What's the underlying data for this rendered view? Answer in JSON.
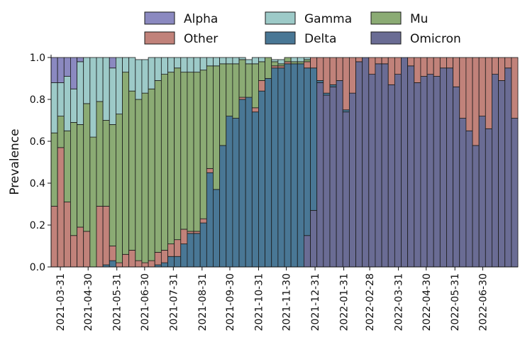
{
  "chart_data": {
    "type": "bar",
    "stacked": true,
    "normalized": true,
    "ylabel": "Prevalence",
    "xlabel": "",
    "ylim": [
      0,
      1.0
    ],
    "yticks": [
      0.0,
      0.2,
      0.4,
      0.6,
      0.8,
      1.0
    ],
    "xticks": [
      "2021-03-31",
      "2021-04-30",
      "2021-05-31",
      "2021-06-30",
      "2021-07-31",
      "2021-08-31",
      "2021-09-30",
      "2021-10-31",
      "2021-11-30",
      "2021-12-31",
      "2022-01-31",
      "2022-02-28",
      "2022-03-31",
      "2022-04-30",
      "2022-05-31",
      "2022-06-30"
    ],
    "bin": "week",
    "first_week_start": "2021-03-21",
    "legend": {
      "position": "top",
      "columns": 3,
      "order": [
        "Alpha",
        "Gamma",
        "Mu",
        "Other",
        "Delta",
        "Omicron"
      ]
    },
    "colors": {
      "Alpha": "#8b89c0",
      "Gamma": "#9dcac8",
      "Mu": "#8bab74",
      "Other": "#c1827a",
      "Delta": "#497795",
      "Omicron": "#6a6c94",
      "edge": "#1a1a1a"
    },
    "stack_order": [
      "Omicron",
      "Delta",
      "Other",
      "Mu",
      "Gamma",
      "Alpha"
    ],
    "series": [
      {
        "name": "Omicron",
        "values": [
          0,
          0,
          0,
          0,
          0,
          0,
          0,
          0,
          0,
          0,
          0,
          0,
          0,
          0,
          0,
          0,
          0,
          0,
          0,
          0,
          0,
          0,
          0,
          0,
          0,
          0,
          0,
          0,
          0,
          0,
          0,
          0,
          0,
          0,
          0,
          0,
          0,
          0,
          0,
          0.15,
          0.27,
          0.88,
          0.82,
          0.86,
          0.89,
          0.74,
          0.83,
          0.98,
          1.0,
          0.92,
          0.97,
          0.97,
          0.87,
          0.92,
          1.0,
          0.96,
          0.88,
          0.91,
          0.92,
          0.91,
          0.95,
          0.95,
          0.86,
          0.71,
          0.65,
          0.58,
          0.72,
          0.66,
          0.92,
          0.89,
          0.95,
          0.71
        ]
      },
      {
        "name": "Delta",
        "values": [
          0,
          0,
          0,
          0,
          0,
          0,
          0,
          0,
          0.01,
          0.03,
          0,
          0,
          0,
          0,
          0,
          0,
          0.01,
          0.02,
          0.05,
          0.05,
          0.11,
          0.16,
          0.16,
          0.21,
          0.45,
          0.37,
          0.58,
          0.72,
          0.71,
          0.8,
          0.81,
          0.74,
          0.84,
          0.9,
          0.95,
          0.95,
          0.97,
          0.97,
          0.97,
          0.8,
          0.68,
          0.01,
          0.01,
          0.01,
          0,
          0.01,
          0,
          0,
          0,
          0,
          0,
          0,
          0,
          0,
          0,
          0,
          0,
          0,
          0,
          0,
          0,
          0,
          0,
          0,
          0,
          0,
          0,
          0,
          0,
          0,
          0,
          0
        ]
      },
      {
        "name": "Other",
        "values": [
          0.29,
          0.57,
          0.31,
          0.15,
          0.19,
          0.17,
          0,
          0.29,
          0.28,
          0.07,
          0.02,
          0.06,
          0.08,
          0.03,
          0.02,
          0.03,
          0.06,
          0.06,
          0.06,
          0.08,
          0.07,
          0.01,
          0.01,
          0.02,
          0.02,
          0,
          0,
          0,
          0,
          0.01,
          0,
          0.02,
          0.05,
          0,
          0.01,
          0.01,
          0.01,
          0,
          0,
          0.03,
          0.05,
          0.11,
          0.17,
          0.13,
          0.11,
          0.26,
          0.17,
          0.02,
          0,
          0.08,
          0.03,
          0.03,
          0.13,
          0.08,
          0,
          0.04,
          0.12,
          0.09,
          0.08,
          0.09,
          0.05,
          0.05,
          0.14,
          0.29,
          0.35,
          0.42,
          0.28,
          0.34,
          0.08,
          0.11,
          0.05,
          0.29
        ]
      },
      {
        "name": "Mu",
        "values": [
          0.35,
          0.15,
          0.34,
          0.54,
          0.49,
          0.61,
          0.62,
          0.5,
          0.41,
          0.58,
          0.71,
          0.87,
          0.76,
          0.77,
          0.81,
          0.82,
          0.82,
          0.84,
          0.82,
          0.82,
          0.75,
          0.76,
          0.76,
          0.71,
          0.49,
          0.59,
          0.39,
          0.25,
          0.26,
          0.18,
          0.16,
          0.21,
          0.09,
          0.1,
          0.02,
          0.01,
          0.02,
          0.01,
          0.01,
          0.01,
          0,
          0,
          0,
          0,
          0,
          0,
          0,
          0,
          0,
          0,
          0,
          0,
          0,
          0,
          0,
          0,
          0,
          0,
          0,
          0,
          0,
          0,
          0,
          0,
          0,
          0,
          0,
          0,
          0,
          0,
          0,
          0
        ]
      },
      {
        "name": "Gamma",
        "values": [
          0.24,
          0.16,
          0.26,
          0.16,
          0.3,
          0.22,
          0.38,
          0.21,
          0.3,
          0.27,
          0.27,
          0.07,
          0.16,
          0.19,
          0.16,
          0.15,
          0.11,
          0.08,
          0.07,
          0.05,
          0.07,
          0.07,
          0.07,
          0.06,
          0.04,
          0.04,
          0.03,
          0.03,
          0.03,
          0.01,
          0.02,
          0.03,
          0.02,
          0,
          0.01,
          0.02,
          0,
          0.02,
          0.02,
          0.01,
          0,
          0,
          0,
          0,
          0,
          0,
          0,
          0,
          0,
          0,
          0,
          0,
          0,
          0,
          0,
          0,
          0,
          0,
          0,
          0,
          0,
          0,
          0,
          0,
          0,
          0,
          0,
          0,
          0,
          0,
          0,
          0
        ]
      },
      {
        "name": "Alpha",
        "values": [
          0.12,
          0.12,
          0.09,
          0.15,
          0.02,
          0,
          0,
          0,
          0,
          0.05,
          0,
          0,
          0,
          0,
          0,
          0,
          0,
          0,
          0,
          0,
          0,
          0,
          0,
          0,
          0,
          0,
          0,
          0,
          0,
          0,
          0,
          0,
          0,
          0,
          0,
          0,
          0,
          0,
          0,
          0,
          0,
          0,
          0,
          0,
          0,
          0,
          0,
          0,
          0,
          0,
          0,
          0,
          0,
          0,
          0,
          0,
          0,
          0,
          0,
          0,
          0,
          0,
          0,
          0,
          0,
          0,
          0,
          0,
          0,
          0,
          0,
          0
        ]
      }
    ]
  }
}
